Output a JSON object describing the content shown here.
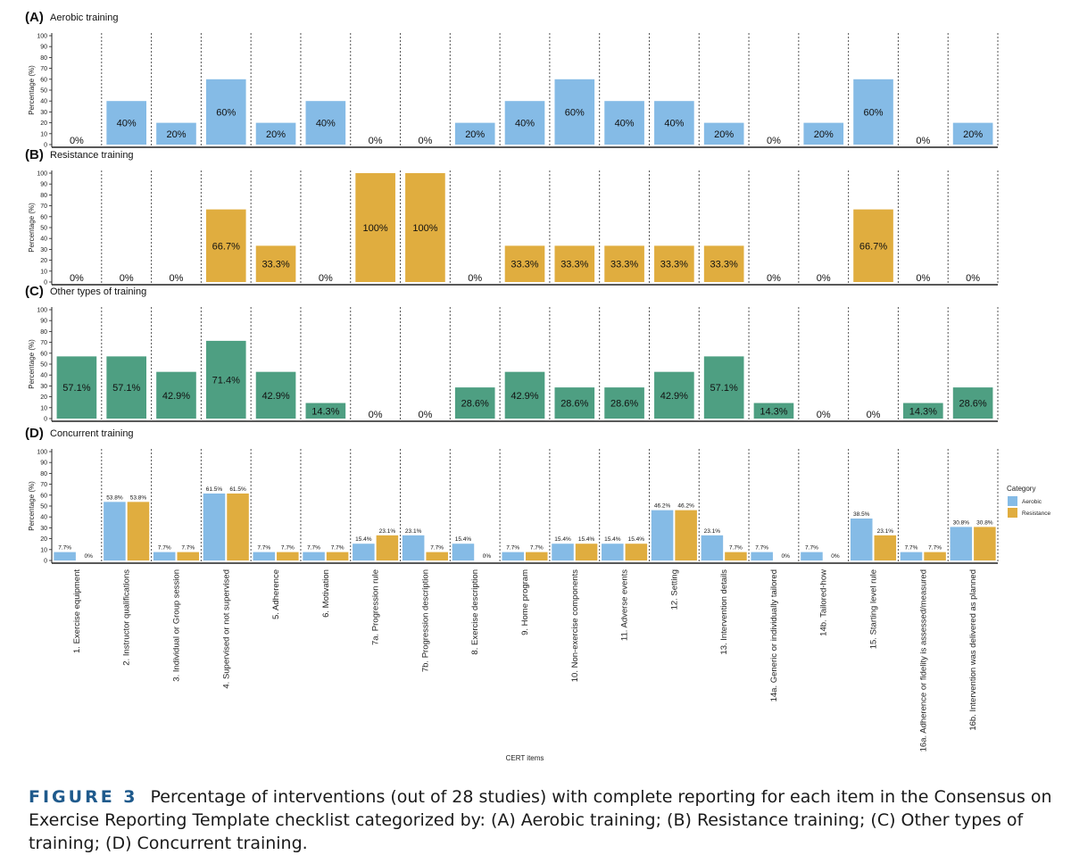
{
  "caption": {
    "label": "FIGURE 3",
    "text": "Percentage of interventions (out of 28 studies) with complete reporting for each item in the Consensus on Exercise Reporting Template checklist categorized by: (A) Aerobic training; (B) Resistance training; (C) Other types of training; (D) Concurrent training."
  },
  "colors": {
    "aerobic": "#85bbe6",
    "resistance": "#e0ad3f",
    "other": "#4e9f82"
  },
  "chart_data": [
    {
      "type": "bar",
      "panel": "(A)",
      "title": "Aerobic training",
      "ylabel": "Percentage (%)",
      "ylim": [
        0,
        100
      ],
      "yticks": [
        0,
        10,
        20,
        30,
        40,
        50,
        60,
        70,
        80,
        90,
        100
      ],
      "series": [
        {
          "name": "Aerobic",
          "color": "#85bbe6",
          "values": [
            0,
            40,
            20,
            60,
            20,
            40,
            0,
            0,
            20,
            40,
            60,
            40,
            40,
            20,
            0,
            20,
            60,
            0,
            20
          ],
          "labels": [
            "0%",
            "40%",
            "20%",
            "60%",
            "20%",
            "40%",
            "0%",
            "0%",
            "20%",
            "40%",
            "60%",
            "40%",
            "40%",
            "20%",
            "0%",
            "20%",
            "60%",
            "0%",
            "20%"
          ]
        }
      ]
    },
    {
      "type": "bar",
      "panel": "(B)",
      "title": "Resistance training",
      "ylabel": "Percentage (%)",
      "ylim": [
        0,
        100
      ],
      "yticks": [
        0,
        10,
        20,
        30,
        40,
        50,
        60,
        70,
        80,
        90,
        100
      ],
      "series": [
        {
          "name": "Resistance",
          "color": "#e0ad3f",
          "values": [
            0,
            0,
            0,
            66.7,
            33.3,
            0,
            100,
            100,
            0,
            33.3,
            33.3,
            33.3,
            33.3,
            33.3,
            0,
            0,
            66.7,
            0,
            0
          ],
          "labels": [
            "0%",
            "0%",
            "0%",
            "66.7%",
            "33.3%",
            "0%",
            "100%",
            "100%",
            "0%",
            "33.3%",
            "33.3%",
            "33.3%",
            "33.3%",
            "33.3%",
            "0%",
            "0%",
            "66.7%",
            "0%",
            "0%"
          ]
        }
      ]
    },
    {
      "type": "bar",
      "panel": "(C)",
      "title": "Other types of training",
      "ylabel": "Percentage (%)",
      "ylim": [
        0,
        100
      ],
      "yticks": [
        0,
        10,
        20,
        30,
        40,
        50,
        60,
        70,
        80,
        90,
        100
      ],
      "series": [
        {
          "name": "Other",
          "color": "#4e9f82",
          "values": [
            57.1,
            57.1,
            42.9,
            71.4,
            42.9,
            14.3,
            0,
            0,
            28.6,
            42.9,
            28.6,
            28.6,
            42.9,
            57.1,
            14.3,
            0,
            0,
            14.3,
            28.6
          ],
          "labels": [
            "57.1%",
            "57.1%",
            "42.9%",
            "71.4%",
            "42.9%",
            "14.3%",
            "0%",
            "0%",
            "28.6%",
            "42.9%",
            "28.6%",
            "28.6%",
            "42.9%",
            "57.1%",
            "14.3%",
            "0%",
            "0%",
            "14.3%",
            "28.6%"
          ]
        }
      ]
    },
    {
      "type": "bar",
      "panel": "(D)",
      "title": "Concurrent training",
      "ylabel": "Percentage (%)",
      "xlabel": "CERT items",
      "ylim": [
        0,
        100
      ],
      "yticks": [
        0,
        10,
        20,
        30,
        40,
        50,
        60,
        70,
        80,
        90,
        100
      ],
      "categories": [
        "1. Exercise equipment",
        "2. Instructor qualifications",
        "3. Individual or Group session",
        "4. Supervised or not supervised",
        "5. Adherence",
        "6. Motivation",
        "7a. Progression rule",
        "7b. Progression description",
        "8. Exercise description",
        "9. Home program",
        "10. Non-exercise components",
        "11. Adverse events",
        "12. Setting",
        "13. Intervention details",
        "14a. Generic or individually tailored",
        "14b. Tailored-how",
        "15. Starting level rule",
        "16a. Adherence or fidelity is assessed/measured",
        "16b. Intervention was delivered as planned"
      ],
      "legend": {
        "title": "Category",
        "position": "right",
        "entries": [
          "Aerobic",
          "Resistance"
        ]
      },
      "series": [
        {
          "name": "Aerobic",
          "color": "#85bbe6",
          "values": [
            7.7,
            53.8,
            7.7,
            61.5,
            7.7,
            7.7,
            15.4,
            23.1,
            15.4,
            7.7,
            15.4,
            15.4,
            46.2,
            23.1,
            7.7,
            7.7,
            38.5,
            7.7,
            30.8
          ],
          "labels": [
            "7.7%",
            "53.8%",
            "7.7%",
            "61.5%",
            "7.7%",
            "7.7%",
            "15.4%",
            "23.1%",
            "15.4%",
            "7.7%",
            "15.4%",
            "15.4%",
            "46.2%",
            "23.1%",
            "7.7%",
            "7.7%",
            "38.5%",
            "7.7%",
            "30.8%"
          ]
        },
        {
          "name": "Resistance",
          "color": "#e0ad3f",
          "values": [
            0,
            53.8,
            7.7,
            61.5,
            7.7,
            7.7,
            23.1,
            7.7,
            0,
            7.7,
            15.4,
            15.4,
            46.2,
            7.7,
            0,
            0,
            23.1,
            7.7,
            30.8
          ],
          "labels": [
            "0%",
            "53.8%",
            "7.7%",
            "61.5%",
            "7.7%",
            "7.7%",
            "23.1%",
            "7.7%",
            "0%",
            "7.7%",
            "15.4%",
            "15.4%",
            "46.2%",
            "7.7%",
            "0%",
            "0%",
            "23.1%",
            "7.7%",
            "30.8%"
          ]
        }
      ]
    }
  ]
}
